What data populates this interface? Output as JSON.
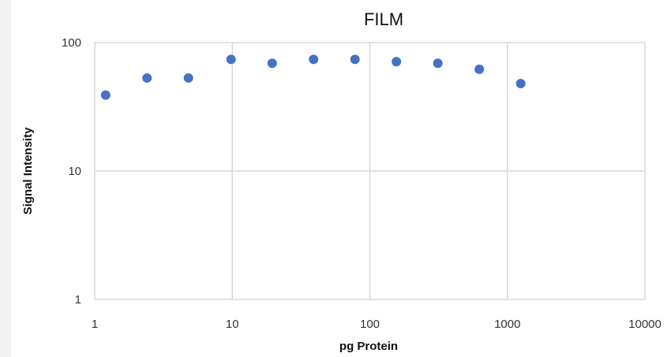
{
  "chart_data": {
    "type": "scatter",
    "title": "FILM",
    "xlabel": "pg Protein",
    "ylabel": "Signal Intensity",
    "x_scale": "log",
    "y_scale": "log",
    "xlim": [
      1,
      10000
    ],
    "ylim": [
      1,
      100
    ],
    "x_ticks": [
      "1",
      "10",
      "100",
      "1000",
      "10000"
    ],
    "y_ticks": [
      "1",
      "10",
      "100"
    ],
    "grid": true,
    "legend": "none",
    "marker_color": "#4472c4",
    "points": [
      {
        "x": 1.2,
        "y": 39
      },
      {
        "x": 2.4,
        "y": 53
      },
      {
        "x": 4.8,
        "y": 53
      },
      {
        "x": 9.8,
        "y": 74
      },
      {
        "x": 19.5,
        "y": 69
      },
      {
        "x": 39,
        "y": 74
      },
      {
        "x": 78,
        "y": 74
      },
      {
        "x": 156,
        "y": 71
      },
      {
        "x": 312,
        "y": 69
      },
      {
        "x": 625,
        "y": 62
      },
      {
        "x": 1250,
        "y": 48
      }
    ]
  }
}
